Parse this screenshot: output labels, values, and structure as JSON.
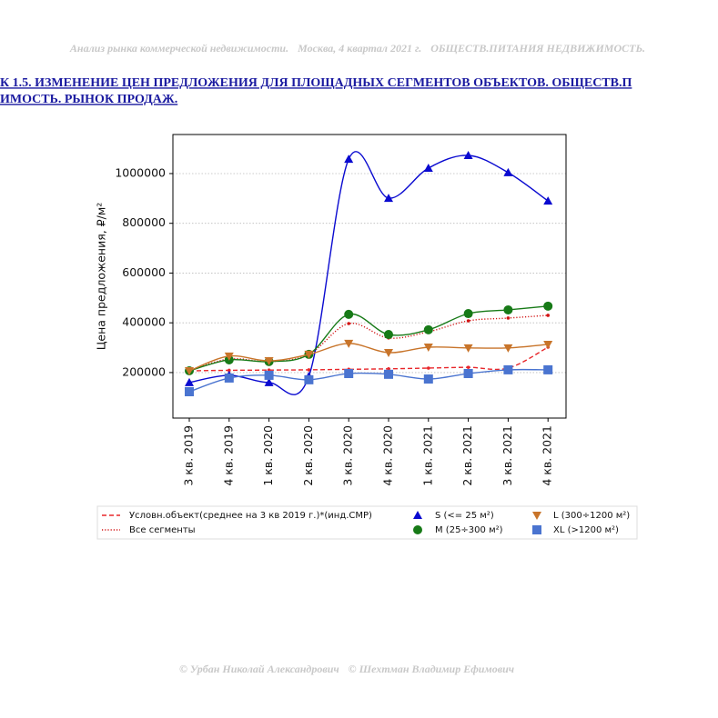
{
  "header": {
    "parts": [
      "Анализ рынка коммерческой недвижимости.",
      "Москва, 4 квартал 2021 г.",
      "ОБЩЕСТВ.ПИТАНИЯ НЕДВИЖИМОСТЬ."
    ]
  },
  "caption": {
    "lines": [
      "К 1.5. ИЗМЕНЕНИЕ ЦЕН ПРЕДЛОЖЕНИЯ ДЛЯ ПЛОЩАДНЫХ СЕГМЕНТОВ ОБЪЕКТОВ. ОБЩЕСТВ.П",
      "ИМОСТЬ. РЫНОК ПРОДАЖ."
    ]
  },
  "chart_data": {
    "type": "line",
    "y_label": "Цена предложения, ₽/м²",
    "categories": [
      "3 кв. 2019",
      "4 кв. 2019",
      "1 кв. 2020",
      "2 кв. 2020",
      "3 кв. 2020",
      "4 кв. 2020",
      "1 кв. 2021",
      "2 кв. 2021",
      "3 кв. 2021",
      "4 кв. 2021"
    ],
    "ylim": [
      17000,
      1157000
    ],
    "yticks": [
      200000,
      400000,
      600000,
      800000,
      1000000
    ],
    "grid": true,
    "legend": "lower center",
    "series": [
      {
        "name": "Условн.объект(среднее на 3 кв 2019 г.)*(инд.СМР)",
        "color": "#e8262a",
        "linestyle": "dashed",
        "values": [
          207000,
          209000,
          210000,
          211000,
          213000,
          215000,
          218000,
          221000,
          218000,
          302000
        ]
      },
      {
        "name": "Все сегменты",
        "color": "#d21414",
        "linestyle": "dotted",
        "values": [
          207000,
          255000,
          244000,
          273000,
          397000,
          339000,
          364000,
          408000,
          419000,
          430000
        ]
      },
      {
        "name": "S (<= 25 м²)",
        "color": "#0a0ad0",
        "linestyle": "solid",
        "marker": "triangle-up",
        "values": [
          160000,
          189000,
          160000,
          185000,
          1058000,
          901000,
          1022000,
          1073000,
          1004000,
          890000
        ]
      },
      {
        "name": "M (25÷300 м²)",
        "color": "#177a17",
        "linestyle": "solid",
        "marker": "circle",
        "values": [
          207000,
          251000,
          244000,
          273000,
          434000,
          353000,
          372000,
          437000,
          452000,
          467000
        ]
      },
      {
        "name": "L (300÷1200 м²)",
        "color": "#c8742a",
        "linestyle": "solid",
        "marker": "triangle-down",
        "values": [
          207000,
          266000,
          247000,
          273000,
          317000,
          280000,
          302000,
          299000,
          299000,
          313000
        ]
      },
      {
        "name": "XL (>1200 м²)",
        "color": "#4a74d0",
        "linestyle": "solid",
        "marker": "square",
        "values": [
          123000,
          178000,
          189000,
          171000,
          196000,
          193000,
          174000,
          196000,
          211000,
          211000
        ]
      }
    ]
  },
  "footer": {
    "parts": [
      "© Урбан Николай Александрович",
      "© Шехтман Владимир Ефимович"
    ]
  }
}
